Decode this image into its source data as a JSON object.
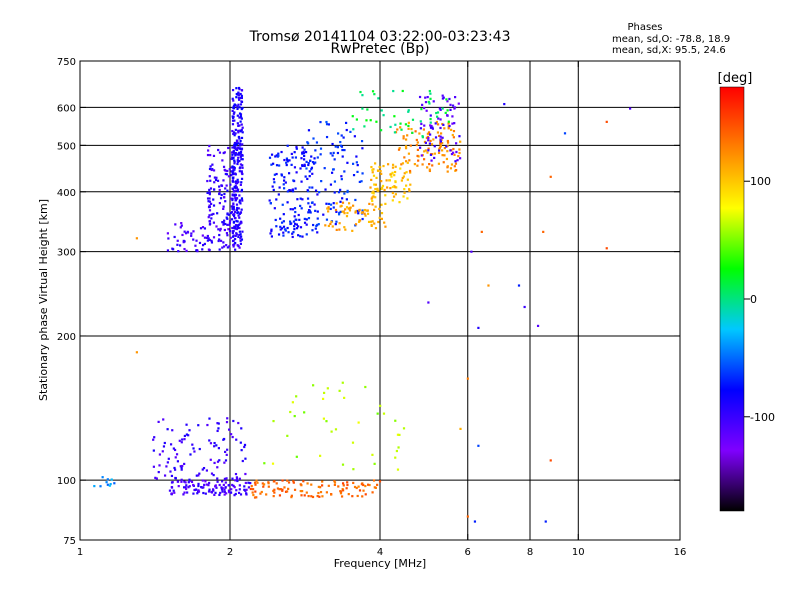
{
  "header": {
    "title": "Tromsø 20141104 03:22:00-03:23:43",
    "subtitle": "RwPretec (Bp)",
    "phase_heading": "Phases",
    "stat_o": "mean, sd,O:  -78.8, 18.9",
    "stat_x": "mean, sd,X:  95.5, 24.6"
  },
  "colorbar": {
    "unit_label": "[deg]",
    "range": [
      -180,
      180
    ],
    "ticks": [
      {
        "value": 100,
        "label": "100"
      },
      {
        "value": 0,
        "label": "0"
      },
      {
        "value": -100,
        "label": "-100"
      }
    ],
    "colors": [
      "#000000",
      "#7f00ff",
      "#0000ff",
      "#00c8ff",
      "#00ff00",
      "#ffff00",
      "#ff8000",
      "#ff0000"
    ]
  },
  "chart_data": {
    "type": "scatter",
    "title": "Tromsø 20141104 03:22:00-03:23:43",
    "subtitle": "RwPretec (Bp)",
    "xlabel": "Frequency [MHz]",
    "ylabel": "Stationary phase Virtual Height [km]",
    "x_scale": "log",
    "y_scale": "log",
    "xlim": [
      1,
      16
    ],
    "ylim": [
      75,
      750
    ],
    "x_ticks": [
      {
        "value": 1,
        "label": "1"
      },
      {
        "value": 2,
        "label": "2"
      },
      {
        "value": 4,
        "label": "4"
      },
      {
        "value": 6,
        "label": "6"
      },
      {
        "value": 8,
        "label": "8"
      },
      {
        "value": 10,
        "label": "10"
      },
      {
        "value": 16,
        "label": "16"
      }
    ],
    "y_ticks": [
      {
        "value": 75,
        "label": "75"
      },
      {
        "value": 100,
        "label": "100"
      },
      {
        "value": 200,
        "label": "200"
      },
      {
        "value": 300,
        "label": "300"
      },
      {
        "value": 400,
        "label": "400"
      },
      {
        "value": 500,
        "label": "500"
      },
      {
        "value": 600,
        "label": "600"
      },
      {
        "value": 750,
        "label": "750"
      }
    ],
    "x_gridlines": [
      2,
      4,
      6,
      8,
      10
    ],
    "y_gridlines": [
      100,
      200,
      300,
      400,
      500,
      600
    ],
    "color_variable": "phase (deg)",
    "point_groups": [
      {
        "x_range": [
          1.5,
          2.1
        ],
        "y_range": [
          300,
          345
        ],
        "phase": -105,
        "count": 90
      },
      {
        "x_range": [
          1.8,
          2.05
        ],
        "y_range": [
          340,
          500
        ],
        "phase": -100,
        "count": 120
      },
      {
        "x_range": [
          2.02,
          2.12
        ],
        "y_range": [
          310,
          660
        ],
        "phase": -90,
        "count": 260
      },
      {
        "x_range": [
          2.4,
          3.0
        ],
        "y_range": [
          320,
          500
        ],
        "phase": -75,
        "count": 160
      },
      {
        "x_range": [
          2.8,
          3.7
        ],
        "y_range": [
          340,
          560
        ],
        "phase": -70,
        "count": 110
      },
      {
        "x_range": [
          3.1,
          4.1
        ],
        "y_range": [
          330,
          380
        ],
        "phase": 115,
        "count": 70
      },
      {
        "x_range": [
          3.8,
          4.6
        ],
        "y_range": [
          380,
          460
        ],
        "phase": 105,
        "count": 80
      },
      {
        "x_range": [
          4.3,
          5.8
        ],
        "y_range": [
          440,
          560
        ],
        "phase": 125,
        "count": 110
      },
      {
        "x_range": [
          4.8,
          5.8
        ],
        "y_range": [
          460,
          640
        ],
        "phase": -110,
        "count": 70
      },
      {
        "x_range": [
          3.5,
          5.5
        ],
        "y_range": [
          520,
          650
        ],
        "phase": 10,
        "count": 50
      },
      {
        "x_range": [
          1.5,
          2.2
        ],
        "y_range": [
          93,
          100
        ],
        "phase": -105,
        "count": 110
      },
      {
        "x_range": [
          1.4,
          2.15
        ],
        "y_range": [
          100,
          135
        ],
        "phase": -100,
        "count": 110
      },
      {
        "x_range": [
          2.2,
          4.0
        ],
        "y_range": [
          92,
          100
        ],
        "phase": 140,
        "count": 110
      },
      {
        "x_range": [
          2.3,
          4.5
        ],
        "y_range": [
          105,
          165
        ],
        "phase": 60,
        "count": 40
      },
      {
        "x_range": [
          1.0,
          1.2
        ],
        "y_range": [
          97,
          102
        ],
        "phase": -40,
        "count": 10
      }
    ],
    "isolated_points": [
      {
        "x": 1.3,
        "y": 320,
        "phase": 120
      },
      {
        "x": 1.3,
        "y": 185,
        "phase": 120
      },
      {
        "x": 6.1,
        "y": 300,
        "phase": -110
      },
      {
        "x": 6.4,
        "y": 330,
        "phase": 140
      },
      {
        "x": 6.3,
        "y": 208,
        "phase": -90
      },
      {
        "x": 6.6,
        "y": 255,
        "phase": 120
      },
      {
        "x": 7.6,
        "y": 255,
        "phase": -70
      },
      {
        "x": 7.8,
        "y": 230,
        "phase": -100
      },
      {
        "x": 8.3,
        "y": 210,
        "phase": -110
      },
      {
        "x": 8.5,
        "y": 330,
        "phase": 140
      },
      {
        "x": 8.8,
        "y": 430,
        "phase": 140
      },
      {
        "x": 9.4,
        "y": 530,
        "phase": -60
      },
      {
        "x": 7.1,
        "y": 610,
        "phase": -90
      },
      {
        "x": 11.4,
        "y": 560,
        "phase": 150
      },
      {
        "x": 11.4,
        "y": 305,
        "phase": 150
      },
      {
        "x": 12.7,
        "y": 597,
        "phase": -110
      },
      {
        "x": 5.0,
        "y": 235,
        "phase": -110
      },
      {
        "x": 5.8,
        "y": 128,
        "phase": 110
      },
      {
        "x": 6.0,
        "y": 163,
        "phase": 130
      },
      {
        "x": 6.3,
        "y": 118,
        "phase": -60
      },
      {
        "x": 8.8,
        "y": 110,
        "phase": 150
      },
      {
        "x": 8.6,
        "y": 82,
        "phase": -70
      },
      {
        "x": 6.2,
        "y": 82,
        "phase": -70
      },
      {
        "x": 6.0,
        "y": 84,
        "phase": 140
      }
    ]
  }
}
